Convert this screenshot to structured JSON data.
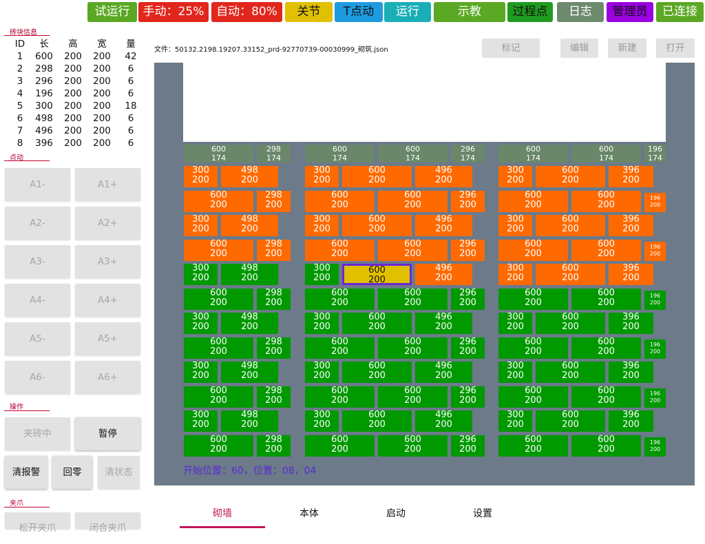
{
  "top_buttons": [
    {
      "label": "试运行",
      "color": "#5aa823",
      "dark": false
    },
    {
      "label": "手动：25%",
      "color": "#e1261c",
      "dark": false
    },
    {
      "label": "自动：80%",
      "color": "#e1261c",
      "dark": false
    },
    {
      "label": "关节",
      "color": "#e0c000",
      "dark": true
    },
    {
      "label": "T点动",
      "color": "#1e9be0",
      "dark": true
    },
    {
      "label": "运行",
      "color": "#1aaeb7",
      "dark": false
    },
    {
      "label": "示教",
      "color": "#5aa823",
      "dark": false
    },
    {
      "label": "过程点",
      "color": "#1f9b1f",
      "dark": true
    },
    {
      "label": "日志",
      "color": "#6d8a6d",
      "dark": false
    },
    {
      "label": "管理员",
      "color": "#9b00e0",
      "dark": true
    },
    {
      "label": "已连接",
      "color": "#5aa823",
      "dark": false
    }
  ],
  "brick_info": {
    "title": "砖块信息",
    "headers": [
      "ID",
      "长",
      "高",
      "宽",
      "量"
    ],
    "rows": [
      [
        "1",
        "600",
        "200",
        "200",
        "42"
      ],
      [
        "2",
        "298",
        "200",
        "200",
        "6"
      ],
      [
        "3",
        "296",
        "200",
        "200",
        "6"
      ],
      [
        "4",
        "196",
        "200",
        "200",
        "6"
      ],
      [
        "5",
        "300",
        "200",
        "200",
        "18"
      ],
      [
        "6",
        "498",
        "200",
        "200",
        "6"
      ],
      [
        "7",
        "496",
        "200",
        "200",
        "6"
      ],
      [
        "8",
        "396",
        "200",
        "200",
        "6"
      ]
    ]
  },
  "jog": {
    "title": "点动",
    "buttons": [
      "A1-",
      "A1+",
      "A2-",
      "A2+",
      "A3-",
      "A3+",
      "A4-",
      "A4+",
      "A5-",
      "A5+",
      "A6-",
      "A6+"
    ]
  },
  "operation": {
    "title": "操作",
    "buttons": [
      {
        "label": "夹砖中",
        "active": false
      },
      {
        "label": "暂停",
        "active": true
      },
      {
        "label": "清报警",
        "active": true
      },
      {
        "label": "回零",
        "active": true
      },
      {
        "label": "清状态",
        "active": false
      }
    ]
  },
  "gripper": {
    "title": "夹爪",
    "buttons": [
      "松开夹爪",
      "闭合夹爪"
    ]
  },
  "file": {
    "label": "文件：50132.2198.19207.33152_prd-92770739-00030999_砌筑.json",
    "buttons": [
      "标记",
      "编辑",
      "新建",
      "打开"
    ]
  },
  "status_line": "开始位置：60，位置：08，04",
  "tabs": [
    {
      "label": "砌墙",
      "active": true
    },
    {
      "label": "本体",
      "active": false
    },
    {
      "label": "启动",
      "active": false
    },
    {
      "label": "设置",
      "active": false
    }
  ],
  "wall": {
    "colors": {
      "gray": "#6a876a",
      "orange": "#ff6a00",
      "green": "#009900",
      "selected": "#e0c000",
      "selected_border": "#6a26d9",
      "background": "#6c7a89"
    },
    "top_row": [
      [
        [
          "600",
          "174"
        ],
        [
          "298",
          "174"
        ]
      ],
      [
        [
          "600",
          "174"
        ],
        [
          "600",
          "174"
        ],
        [
          "296",
          "174"
        ]
      ],
      [
        [
          "600",
          "174"
        ],
        [
          "600",
          "174"
        ],
        [
          "196",
          "174"
        ]
      ]
    ],
    "pattern_a": [
      [
        "300",
        "498"
      ],
      [
        "300",
        "600",
        "496"
      ],
      [
        "300",
        "600",
        "396"
      ]
    ],
    "pattern_b": [
      [
        "600",
        "298"
      ],
      [
        "600",
        "600",
        "296"
      ],
      [
        "600",
        "600",
        "196"
      ]
    ],
    "rows": [
      {
        "pattern": "a",
        "color": "orange"
      },
      {
        "pattern": "b",
        "color": "orange"
      },
      {
        "pattern": "a",
        "color": "orange"
      },
      {
        "pattern": "b",
        "color": "orange"
      },
      {
        "pattern": "a",
        "color": "mixed"
      },
      {
        "pattern": "b",
        "color": "green"
      },
      {
        "pattern": "a",
        "color": "green"
      },
      {
        "pattern": "b",
        "color": "green"
      },
      {
        "pattern": "a",
        "color": "green"
      },
      {
        "pattern": "b",
        "color": "green"
      },
      {
        "pattern": "a",
        "color": "green"
      },
      {
        "pattern": "b",
        "color": "green"
      }
    ],
    "mixed_row_colors": [
      [
        "green",
        "green"
      ],
      [
        "green",
        "selected",
        "orange"
      ],
      [
        "orange",
        "orange",
        "orange"
      ]
    ],
    "brick_height": "200"
  }
}
